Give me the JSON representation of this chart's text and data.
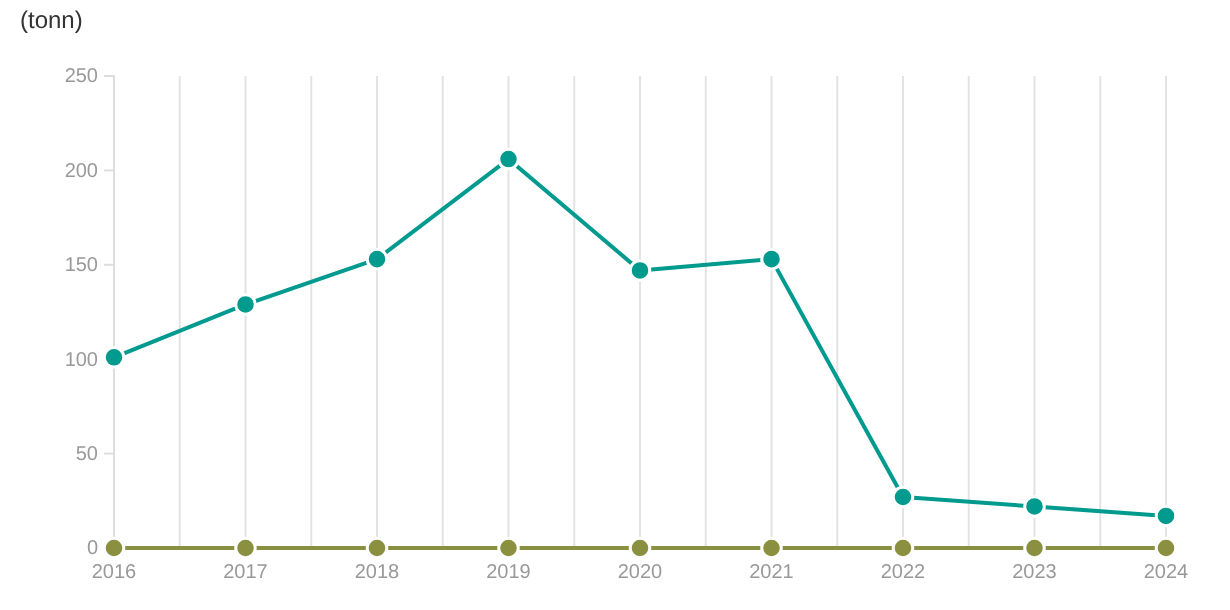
{
  "chart_data": {
    "type": "line",
    "ylabel": "(tonn)",
    "x": [
      2016,
      2017,
      2018,
      2019,
      2020,
      2021,
      2022,
      2023,
      2024
    ],
    "series": [
      {
        "color": "#009a8e",
        "values": [
          101,
          129,
          153,
          206,
          147,
          153,
          27,
          22,
          17
        ]
      },
      {
        "color": "#8a9040",
        "values": [
          0,
          0,
          0,
          0,
          0,
          0,
          0,
          0,
          0
        ]
      }
    ],
    "xlim": [
      2016,
      2024
    ],
    "xticks": [
      2016,
      {
        "value": 2016.5,
        "label": null
      },
      2017,
      {
        "value": 2017.5,
        "label": null
      },
      2018,
      {
        "value": 2018.5,
        "label": null
      },
      2019,
      {
        "value": 2019.5,
        "label": null
      },
      2020,
      {
        "value": 2020.5,
        "label": null
      },
      2021,
      {
        "value": 2021.5,
        "label": null
      },
      2022,
      {
        "value": 2022.5,
        "label": null
      },
      2023,
      {
        "value": 2023.5,
        "label": null
      },
      2024
    ],
    "ylim": [
      0,
      250
    ],
    "yticks": [
      0,
      50,
      100,
      150,
      200,
      250
    ],
    "grid": "x",
    "marker": "circle",
    "line_style": "solid"
  }
}
